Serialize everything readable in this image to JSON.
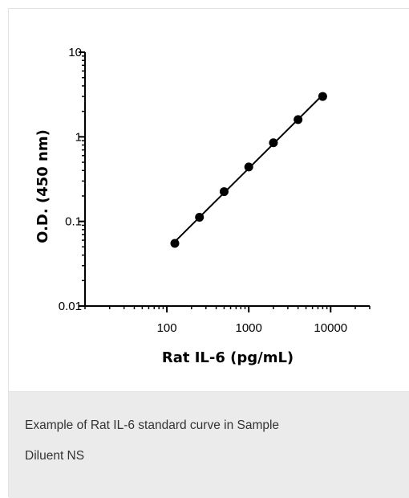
{
  "chart_data": {
    "type": "scatter",
    "x_scale": "log",
    "y_scale": "log",
    "xlabel": "Rat IL-6 (pg/mL)",
    "ylabel": "O.D. (450 nm)",
    "xlim": [
      10,
      30000
    ],
    "ylim": [
      0.01,
      10
    ],
    "x_ticks": [
      100,
      1000,
      10000
    ],
    "x_tick_labels": [
      "100",
      "1000",
      "10000"
    ],
    "y_ticks": [
      0.01,
      0.1,
      1,
      10
    ],
    "y_tick_labels": [
      "0.01",
      "0.1",
      "1",
      "10"
    ],
    "series": [
      {
        "x": [
          125,
          250,
          500,
          1000,
          2000,
          4000,
          8000
        ],
        "y": [
          0.055,
          0.112,
          0.225,
          0.44,
          0.85,
          1.6,
          3.0
        ]
      }
    ],
    "fit_line": true,
    "grid": false,
    "color": "#000000"
  },
  "caption": {
    "line1": "Example of Rat IL-6 standard curve in Sample",
    "line2": "Diluent NS"
  }
}
